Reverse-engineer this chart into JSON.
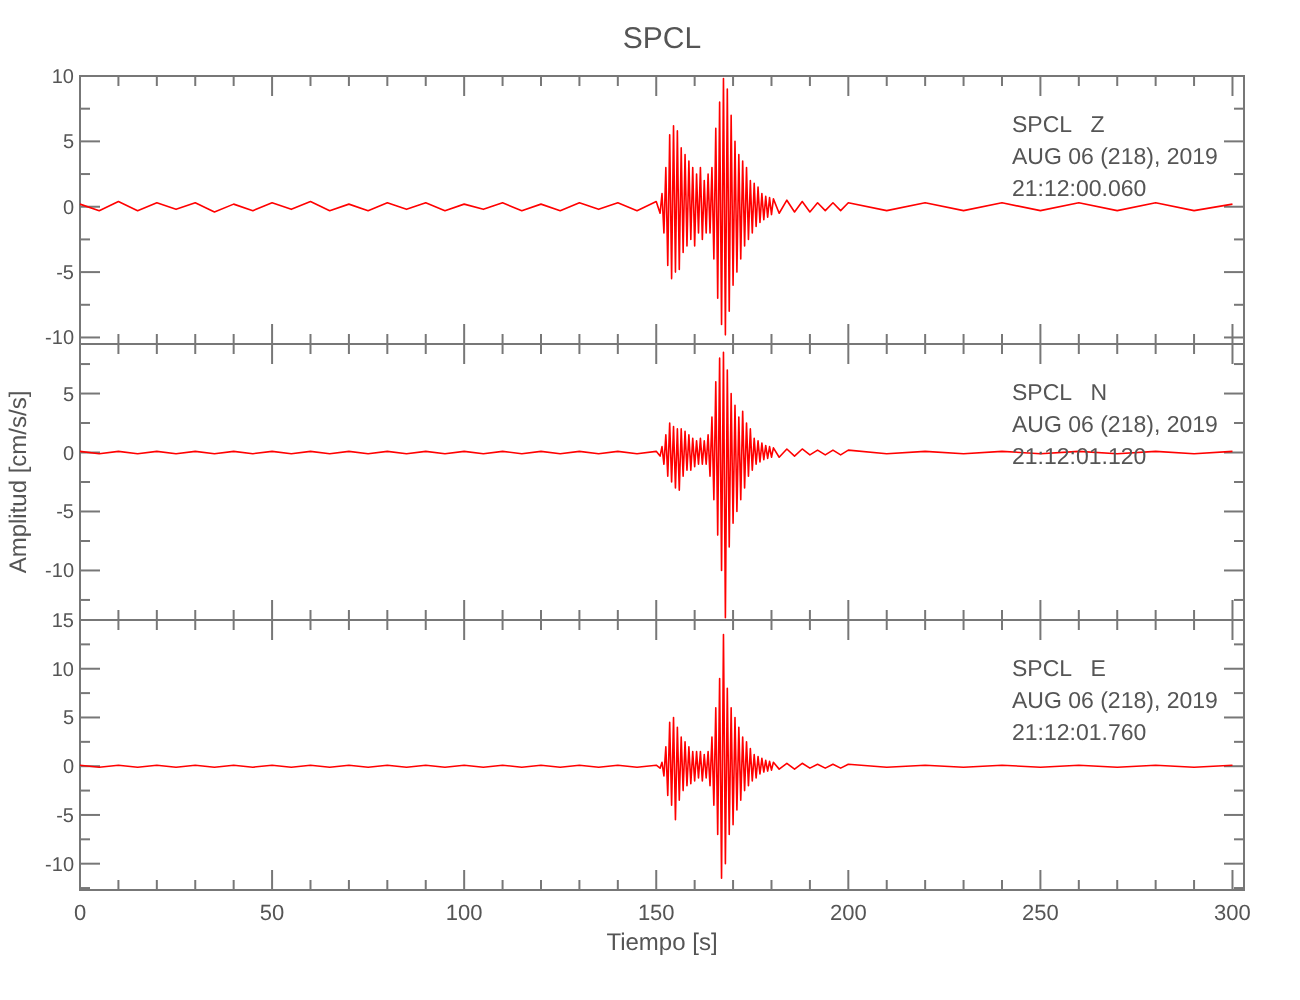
{
  "chart_data": [
    {
      "type": "line",
      "title": "SPCL",
      "annotations": [
        "SPCL   Z",
        "AUG 06 (218), 2019",
        "21:12:00.060"
      ],
      "tick_labels": "y",
      "xlim": [
        0,
        303
      ],
      "ylim": [
        -10.5,
        10
      ],
      "xticks": [
        0,
        {
          "value": 10,
          "label": null
        },
        {
          "value": 20,
          "label": null
        },
        {
          "value": 30,
          "label": null
        },
        {
          "value": 40,
          "label": null
        },
        50,
        {
          "value": 60,
          "label": null
        },
        {
          "value": 70,
          "label": null
        },
        {
          "value": 80,
          "label": null
        },
        {
          "value": 90,
          "label": null
        },
        100,
        {
          "value": 110,
          "label": null
        },
        {
          "value": 120,
          "label": null
        },
        {
          "value": 130,
          "label": null
        },
        {
          "value": 140,
          "label": null
        },
        150,
        {
          "value": 160,
          "label": null
        },
        {
          "value": 170,
          "label": null
        },
        {
          "value": 180,
          "label": null
        },
        {
          "value": 190,
          "label": null
        },
        200,
        {
          "value": 210,
          "label": null
        },
        {
          "value": 220,
          "label": null
        },
        {
          "value": 230,
          "label": null
        },
        {
          "value": 240,
          "label": null
        },
        250,
        {
          "value": 260,
          "label": null
        },
        {
          "value": 270,
          "label": null
        },
        {
          "value": 280,
          "label": null
        },
        {
          "value": 290,
          "label": null
        },
        300
      ],
      "yticks": [
        -10,
        {
          "value": -7.5,
          "label": null
        },
        -5,
        {
          "value": -2.5,
          "label": null
        },
        0,
        {
          "value": 2.5,
          "label": null
        },
        5,
        {
          "value": 7.5,
          "label": null
        },
        10
      ],
      "x": [
        0,
        5,
        10,
        15,
        20,
        25,
        30,
        35,
        40,
        45,
        50,
        55,
        60,
        65,
        70,
        75,
        80,
        85,
        90,
        95,
        100,
        105,
        110,
        115,
        120,
        125,
        130,
        135,
        140,
        145,
        150,
        151,
        151.5,
        152,
        152.5,
        153,
        153.5,
        154,
        154.5,
        155,
        155.5,
        156,
        156.5,
        157,
        157.5,
        158,
        158.5,
        159,
        159.5,
        160,
        160.5,
        161,
        161.5,
        162,
        162.5,
        163,
        163.5,
        164,
        164.5,
        165,
        165.5,
        166,
        166.5,
        167,
        167.5,
        168,
        168.5,
        169,
        169.5,
        170,
        170.5,
        171,
        171.5,
        172,
        172.5,
        173,
        173.5,
        174,
        174.5,
        175,
        175.5,
        176,
        176.5,
        177,
        177.5,
        178,
        178.5,
        179,
        179.5,
        180,
        180.5,
        182,
        184,
        186,
        188,
        190,
        192,
        194,
        196,
        198,
        200,
        210,
        220,
        230,
        240,
        250,
        260,
        270,
        280,
        290,
        300
      ],
      "series": [
        {
          "color": "#ff0000",
          "values": [
            0.2,
            -0.3,
            0.4,
            -0.3,
            0.3,
            -0.2,
            0.3,
            -0.4,
            0.2,
            -0.3,
            0.3,
            -0.2,
            0.4,
            -0.3,
            0.2,
            -0.3,
            0.3,
            -0.2,
            0.3,
            -0.3,
            0.2,
            -0.2,
            0.3,
            -0.3,
            0.2,
            -0.3,
            0.3,
            -0.2,
            0.3,
            -0.3,
            0.4,
            -0.5,
            1,
            -2,
            3,
            -4.5,
            5.5,
            -5.5,
            6.2,
            -5,
            5.8,
            -4.8,
            4.5,
            -3.5,
            4,
            -3,
            3.5,
            -2.5,
            3,
            -3,
            2.5,
            -2,
            3,
            -2.5,
            2,
            -2,
            2.5,
            -2,
            3,
            -4,
            6,
            -7,
            8,
            -9,
            9.8,
            -9.8,
            9,
            -8,
            7,
            -6,
            5,
            -5,
            4,
            -4,
            3.5,
            -3,
            3,
            -2.5,
            2,
            -2,
            1.8,
            -1.5,
            1.5,
            -1.2,
            1,
            -1,
            0.8,
            -0.8,
            0.7,
            -0.6,
            0.6,
            -0.5,
            0.5,
            -0.4,
            0.4,
            -0.4,
            0.3,
            -0.3,
            0.3,
            -0.3,
            0.3,
            -0.3,
            0.3,
            -0.3,
            0.3,
            -0.3,
            0.3,
            -0.3,
            0.3,
            -0.3,
            0.2
          ]
        }
      ]
    },
    {
      "type": "line",
      "ylabel": "Amplitud [cm/s/s]",
      "annotations": [
        "SPCL   N",
        "AUG 06 (218), 2019",
        "21:12:01.120"
      ],
      "tick_labels": "y",
      "xlim": [
        0,
        303
      ],
      "ylim": [
        -14.2,
        9.2
      ],
      "xticks": [
        0,
        {
          "value": 10,
          "label": null
        },
        {
          "value": 20,
          "label": null
        },
        {
          "value": 30,
          "label": null
        },
        {
          "value": 40,
          "label": null
        },
        50,
        {
          "value": 60,
          "label": null
        },
        {
          "value": 70,
          "label": null
        },
        {
          "value": 80,
          "label": null
        },
        {
          "value": 90,
          "label": null
        },
        100,
        {
          "value": 110,
          "label": null
        },
        {
          "value": 120,
          "label": null
        },
        {
          "value": 130,
          "label": null
        },
        {
          "value": 140,
          "label": null
        },
        150,
        {
          "value": 160,
          "label": null
        },
        {
          "value": 170,
          "label": null
        },
        {
          "value": 180,
          "label": null
        },
        {
          "value": 190,
          "label": null
        },
        200,
        {
          "value": 210,
          "label": null
        },
        {
          "value": 220,
          "label": null
        },
        {
          "value": 230,
          "label": null
        },
        {
          "value": 240,
          "label": null
        },
        250,
        {
          "value": 260,
          "label": null
        },
        {
          "value": 270,
          "label": null
        },
        {
          "value": 280,
          "label": null
        },
        {
          "value": 290,
          "label": null
        },
        300
      ],
      "yticks": [
        {
          "value": -12.5,
          "label": null
        },
        -10,
        {
          "value": -7.5,
          "label": null
        },
        -5,
        {
          "value": -2.5,
          "label": null
        },
        0,
        {
          "value": 2.5,
          "label": null
        },
        5,
        {
          "value": 7.5,
          "label": null
        }
      ],
      "x": [
        0,
        5,
        10,
        15,
        20,
        25,
        30,
        35,
        40,
        45,
        50,
        55,
        60,
        65,
        70,
        75,
        80,
        85,
        90,
        95,
        100,
        105,
        110,
        115,
        120,
        125,
        130,
        135,
        140,
        145,
        150,
        151,
        151.5,
        152,
        152.5,
        153,
        153.5,
        154,
        154.5,
        155,
        155.5,
        156,
        156.5,
        157,
        157.5,
        158,
        158.5,
        159,
        159.5,
        160,
        160.5,
        161,
        161.5,
        162,
        162.5,
        163,
        163.5,
        164,
        164.5,
        165,
        165.5,
        166,
        166.5,
        167,
        167.5,
        168,
        168.5,
        169,
        169.5,
        170,
        170.5,
        171,
        171.5,
        172,
        172.5,
        173,
        173.5,
        174,
        174.5,
        175,
        175.5,
        176,
        176.5,
        177,
        177.5,
        178,
        178.5,
        179,
        179.5,
        180,
        180.5,
        182,
        184,
        186,
        188,
        190,
        192,
        194,
        196,
        198,
        200,
        210,
        220,
        230,
        240,
        250,
        260,
        270,
        280,
        290,
        300
      ],
      "series": [
        {
          "color": "#ff0000",
          "values": [
            0.1,
            -0.1,
            0.1,
            -0.1,
            0.1,
            -0.1,
            0.1,
            -0.1,
            0.1,
            -0.1,
            0.1,
            -0.1,
            0.1,
            -0.1,
            0.1,
            -0.1,
            0.1,
            -0.1,
            0.1,
            -0.1,
            0.1,
            -0.1,
            0.1,
            -0.1,
            0.1,
            -0.1,
            0.1,
            -0.1,
            0.1,
            -0.1,
            0.1,
            -0.3,
            0.5,
            -1,
            1.5,
            -2,
            2.5,
            -2.5,
            2.2,
            -3,
            2,
            -3.2,
            2,
            -2,
            1.8,
            -1.5,
            1.5,
            -1.5,
            1.2,
            -1.2,
            1,
            -1,
            1.2,
            -1,
            1,
            -1,
            1.5,
            -2,
            3,
            -4,
            6,
            -7,
            8,
            -10,
            8.5,
            -14,
            7,
            -8,
            5,
            -6,
            4,
            -5,
            3,
            -4,
            3.5,
            -3,
            2.5,
            -2,
            2,
            -1.5,
            1.2,
            -1,
            1,
            -0.8,
            0.8,
            -0.6,
            0.6,
            -0.5,
            0.5,
            -0.4,
            0.4,
            -0.4,
            0.3,
            -0.3,
            0.3,
            -0.2,
            0.2,
            -0.2,
            0.2,
            -0.2,
            0.2,
            -0.1,
            0.1,
            -0.1,
            0.1,
            -0.1,
            0.1,
            -0.1,
            0.1,
            -0.1,
            0.1
          ]
        }
      ]
    },
    {
      "type": "line",
      "xlabel": "Tiempo [s]",
      "annotations": [
        "SPCL   E",
        "AUG 06 (218), 2019",
        "21:12:01.760"
      ],
      "xlim": [
        0,
        303
      ],
      "ylim": [
        -12.7,
        15
      ],
      "xticks": [
        0,
        {
          "value": 10,
          "label": null
        },
        {
          "value": 20,
          "label": null
        },
        {
          "value": 30,
          "label": null
        },
        {
          "value": 40,
          "label": null
        },
        50,
        {
          "value": 60,
          "label": null
        },
        {
          "value": 70,
          "label": null
        },
        {
          "value": 80,
          "label": null
        },
        {
          "value": 90,
          "label": null
        },
        100,
        {
          "value": 110,
          "label": null
        },
        {
          "value": 120,
          "label": null
        },
        {
          "value": 130,
          "label": null
        },
        {
          "value": 140,
          "label": null
        },
        150,
        {
          "value": 160,
          "label": null
        },
        {
          "value": 170,
          "label": null
        },
        {
          "value": 180,
          "label": null
        },
        {
          "value": 190,
          "label": null
        },
        200,
        {
          "value": 210,
          "label": null
        },
        {
          "value": 220,
          "label": null
        },
        {
          "value": 230,
          "label": null
        },
        {
          "value": 240,
          "label": null
        },
        250,
        {
          "value": 260,
          "label": null
        },
        {
          "value": 270,
          "label": null
        },
        {
          "value": 280,
          "label": null
        },
        {
          "value": 290,
          "label": null
        },
        300
      ],
      "yticks": [
        {
          "value": -12.5,
          "label": null
        },
        -10,
        {
          "value": -7.5,
          "label": null
        },
        -5,
        {
          "value": -2.5,
          "label": null
        },
        0,
        {
          "value": 2.5,
          "label": null
        },
        5,
        {
          "value": 7.5,
          "label": null
        },
        10,
        {
          "value": 12.5,
          "label": null
        },
        15
      ],
      "x": [
        0,
        5,
        10,
        15,
        20,
        25,
        30,
        35,
        40,
        45,
        50,
        55,
        60,
        65,
        70,
        75,
        80,
        85,
        90,
        95,
        100,
        105,
        110,
        115,
        120,
        125,
        130,
        135,
        140,
        145,
        150,
        151,
        151.5,
        152,
        152.5,
        153,
        153.5,
        154,
        154.5,
        155,
        155.5,
        156,
        156.5,
        157,
        157.5,
        158,
        158.5,
        159,
        159.5,
        160,
        160.5,
        161,
        161.5,
        162,
        162.5,
        163,
        163.5,
        164,
        164.5,
        165,
        165.5,
        166,
        166.5,
        167,
        167.5,
        168,
        168.5,
        169,
        169.5,
        170,
        170.5,
        171,
        171.5,
        172,
        172.5,
        173,
        173.5,
        174,
        174.5,
        175,
        175.5,
        176,
        176.5,
        177,
        177.5,
        178,
        178.5,
        179,
        179.5,
        180,
        180.5,
        182,
        184,
        186,
        188,
        190,
        192,
        194,
        196,
        198,
        200,
        210,
        220,
        230,
        240,
        250,
        260,
        270,
        280,
        290,
        300
      ],
      "series": [
        {
          "color": "#ff0000",
          "values": [
            0.1,
            -0.1,
            0.1,
            -0.1,
            0.1,
            -0.1,
            0.1,
            -0.1,
            0.1,
            -0.1,
            0.1,
            -0.1,
            0.1,
            -0.1,
            0.1,
            -0.1,
            0.1,
            -0.1,
            0.1,
            -0.1,
            0.1,
            -0.1,
            0.1,
            -0.1,
            0.1,
            -0.1,
            0.1,
            -0.1,
            0.1,
            -0.1,
            0.1,
            -0.2,
            0.4,
            -1,
            2,
            -3,
            4.5,
            -4,
            5,
            -5.5,
            4,
            -3.5,
            3,
            -2.5,
            2.5,
            -2,
            2,
            -1.8,
            1.5,
            -1.5,
            1.5,
            -1.2,
            1.5,
            -1.5,
            1.2,
            -1.2,
            1.5,
            -2,
            3,
            -4,
            6,
            -7,
            9,
            -11.5,
            13.5,
            -10,
            8,
            -7,
            6,
            -6,
            5,
            -4.5,
            4,
            -3.5,
            3,
            -2.5,
            2.5,
            -2,
            1.8,
            -1.5,
            1.2,
            -1.2,
            1,
            -0.8,
            0.8,
            -0.6,
            0.6,
            -0.5,
            0.5,
            -0.4,
            0.4,
            -0.3,
            0.3,
            -0.3,
            0.3,
            -0.2,
            0.2,
            -0.2,
            0.2,
            -0.2,
            0.2,
            -0.1,
            0.1,
            -0.1,
            0.1,
            -0.1,
            0.1,
            -0.1,
            0.1,
            -0.1,
            0.1
          ]
        }
      ]
    }
  ]
}
